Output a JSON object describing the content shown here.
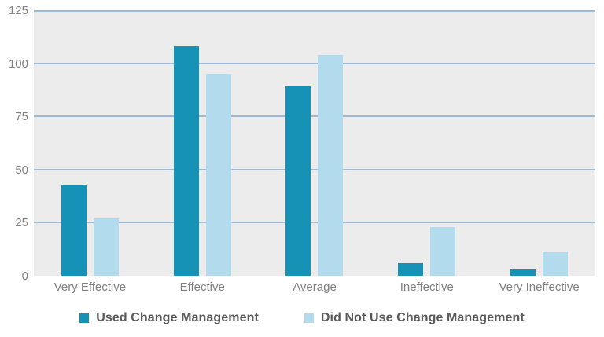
{
  "colors": {
    "series1": "#1592B6",
    "series2": "#B2DCEE",
    "plot_bg": "#ECECEC",
    "gridline": "#9FB9D4",
    "axis_label": "#808080",
    "legend_text": "#595959",
    "background": "#FFFFFF"
  },
  "chart_data": {
    "type": "bar",
    "title": "",
    "xlabel": "",
    "ylabel": "",
    "categories": [
      "Very Effective",
      "Effective",
      "Average",
      "Ineffective",
      "Very Ineffective"
    ],
    "series": [
      {
        "name": "Used Change Management",
        "color": "#1592B6",
        "values": [
          43,
          108,
          89,
          6,
          3
        ]
      },
      {
        "name": "Did Not Use Change Management",
        "color": "#B2DCEE",
        "values": [
          27,
          95,
          104,
          23,
          11
        ]
      }
    ],
    "ylim": [
      0,
      125
    ],
    "yticks": [
      0,
      25,
      50,
      75,
      100,
      125
    ],
    "grid": true,
    "gridlines_at": [
      25,
      50,
      75,
      100,
      125
    ],
    "legend_position": "bottom"
  }
}
